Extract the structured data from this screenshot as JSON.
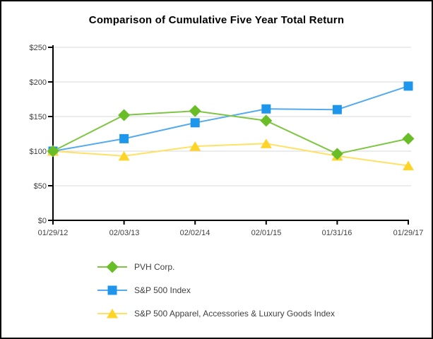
{
  "page": {
    "title": "Comparison of Cumulative Five Year Total Return"
  },
  "chart_data": {
    "type": "line",
    "title": "Comparison of Cumulative Five Year Total Return",
    "categories": [
      "01/29/12",
      "02/03/13",
      "02/02/14",
      "02/01/15",
      "01/31/16",
      "01/29/17"
    ],
    "series": [
      {
        "name": "PVH Corp.",
        "marker": "diamond",
        "color": "#69BE28",
        "line_color": "#7FC544",
        "values": [
          100,
          152,
          158,
          144,
          96,
          118
        ]
      },
      {
        "name": "S&P 500 Index",
        "marker": "square",
        "color": "#1E96EC",
        "line_color": "#55AAEF",
        "values": [
          100,
          118,
          141,
          161,
          160,
          194
        ]
      },
      {
        "name": "S&P 500 Apparel, Accessories & Luxury Goods Index",
        "marker": "triangle",
        "color": "#FFD428",
        "line_color": "#FFE164",
        "values": [
          100,
          93,
          107,
          111,
          93,
          79
        ]
      }
    ],
    "ylim": [
      0,
      250
    ],
    "y_tick_interval": 50,
    "y_tick_labels": [
      "$0",
      "$50",
      "$100",
      "$150",
      "$200",
      "$250"
    ],
    "grid": "horizontal",
    "legend_position": "bottom-left"
  },
  "colors": {
    "grid": "#D9D9D9",
    "axis": "#000000",
    "text": "#3F3F3F"
  }
}
